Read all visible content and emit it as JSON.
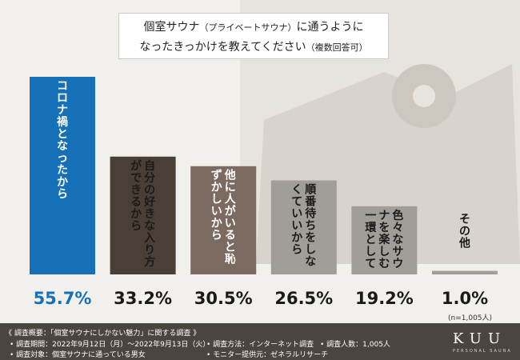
{
  "title": {
    "line1_main": "個室サウナ",
    "line1_paren": "（プライベートサウナ）",
    "line1_tail": "に通うように",
    "line2_main": "なったきっかけを教えてください",
    "line2_paren": "（複数回答可）"
  },
  "chart_data": {
    "type": "bar",
    "categories": [
      "コロナ禍となったから",
      "自分の好きな入り方ができるから",
      "他に人がいると恥ずかしいから",
      "順番待ちをしなくていいから",
      "色々なサウナを楽しむ一環として",
      "その他"
    ],
    "value_labels": [
      "55.7%",
      "33.2%",
      "30.5%",
      "26.5%",
      "19.2%",
      "1.0%"
    ],
    "values": [
      55.7,
      33.2,
      30.5,
      26.5,
      19.2,
      1.0
    ],
    "ylim": [
      0,
      55.7
    ],
    "colors": [
      "#1670b8",
      "#4a3f37",
      "#7a6a60",
      "#a19d99",
      "#a19d99",
      "#a19d99"
    ],
    "label_colors": [
      "#ffffff",
      "#1a1a1a",
      "#ffffff",
      "#1a1a1a",
      "#1a1a1a",
      "#1a1a1a"
    ],
    "value_colors": [
      "#1670b8",
      "#1a1a1a",
      "#1a1a1a",
      "#1a1a1a",
      "#1a1a1a",
      "#1a1a1a"
    ]
  },
  "sample_note": "(n=1,005人)",
  "footer": {
    "overview": "《 調査概要：「個室サウナにしかない魅力」に関する調査 》",
    "period": "• 調査期間：2022年9月12日（月）～2022年9月13日（火）",
    "target": "• 調査対象：個室サウナに通っている男女",
    "method": "• 調査方法：インターネット調査",
    "count": "• 調査人数：1,005人",
    "monitor": "• モニター提供元：ゼネラルリサーチ"
  },
  "brand": {
    "logo": "KUU",
    "sub": "PERSONAL SAUNA"
  }
}
